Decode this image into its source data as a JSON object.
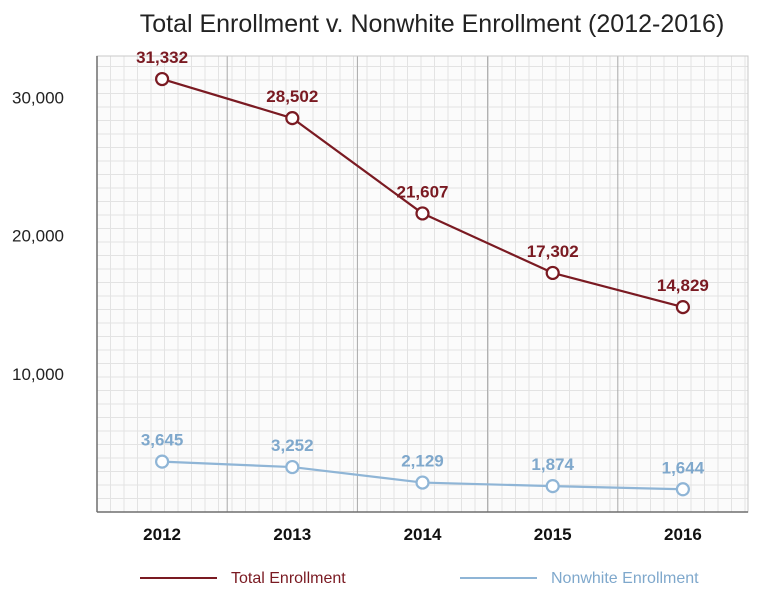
{
  "chart_data": {
    "type": "line",
    "title": "Total Enrollment v. Nonwhite Enrollment (2012-2016)",
    "xlabel": "",
    "ylabel": "",
    "categories": [
      "2012",
      "2013",
      "2014",
      "2015",
      "2016"
    ],
    "yticks": [
      "10,000",
      "20,000",
      "30,000"
    ],
    "ylim": [
      0,
      33000
    ],
    "grid": true,
    "legend_position": "bottom",
    "series": [
      {
        "name": "Total Enrollment",
        "color": "#7a1a22",
        "values": [
          31332,
          28502,
          21607,
          17302,
          14829
        ],
        "labels": [
          "31,332",
          "28,502",
          "21,607",
          "17,302",
          "14,829"
        ]
      },
      {
        "name": "Nonwhite Enrollment",
        "color": "#8fb5d6",
        "label_color": "#7fa8cc",
        "values": [
          3645,
          3252,
          2129,
          1874,
          1644
        ],
        "labels": [
          "3,645",
          "3,252",
          "2,129",
          "1,874",
          "1,644"
        ]
      }
    ]
  }
}
